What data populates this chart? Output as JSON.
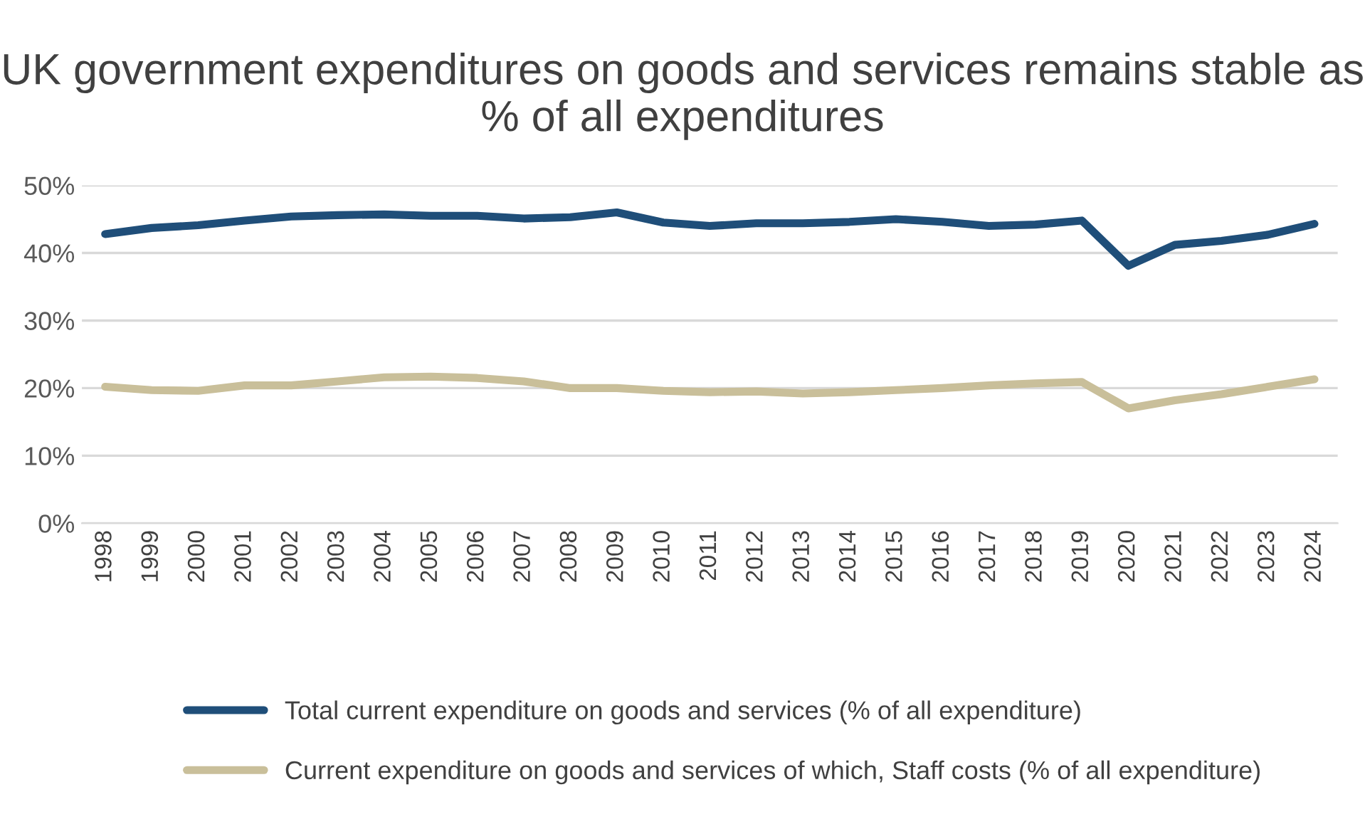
{
  "chart_data": {
    "type": "line",
    "title": "UK government expenditures on goods and services remains stable as % of all expenditures",
    "categories": [
      "1998",
      "1999",
      "2000",
      "2001",
      "2002",
      "2003",
      "2004",
      "2005",
      "2006",
      "2007",
      "2008",
      "2009",
      "2010",
      "2011",
      "2012",
      "2013",
      "2014",
      "2015",
      "2016",
      "2017",
      "2018",
      "2019",
      "2020",
      "2021",
      "2022",
      "2023",
      "2024"
    ],
    "series": [
      {
        "name": "Total current expenditure on goods and services (% of all expenditure)",
        "color": "#1f4e79",
        "values": [
          42.8,
          43.7,
          44.1,
          44.8,
          45.4,
          45.6,
          45.7,
          45.5,
          45.5,
          45.1,
          45.3,
          46.0,
          44.5,
          44.0,
          44.4,
          44.4,
          44.6,
          45.0,
          44.6,
          44.0,
          44.2,
          44.8,
          38.1,
          41.2,
          41.8,
          42.7,
          44.3
        ]
      },
      {
        "name": "Current expenditure on goods and services of which, Staff costs (% of all expenditure)",
        "color": "#c9bf9a",
        "values": [
          20.2,
          19.7,
          19.6,
          20.4,
          20.4,
          21.0,
          21.6,
          21.7,
          21.5,
          21.0,
          20.0,
          20.0,
          19.6,
          19.4,
          19.5,
          19.2,
          19.4,
          19.7,
          20.0,
          20.4,
          20.7,
          20.9,
          17.0,
          18.2,
          19.1,
          20.2,
          21.3
        ]
      }
    ],
    "ylim": [
      0,
      50
    ],
    "yticks": [
      {
        "value": 0,
        "label": "0%"
      },
      {
        "value": 10,
        "label": "10%"
      },
      {
        "value": 20,
        "label": "20%"
      },
      {
        "value": 30,
        "label": "30%"
      },
      {
        "value": 40,
        "label": "40%"
      },
      {
        "value": 50,
        "label": "50%"
      }
    ],
    "grid": "y",
    "legend": "bottom",
    "marker": "none",
    "line_style": "solid"
  }
}
